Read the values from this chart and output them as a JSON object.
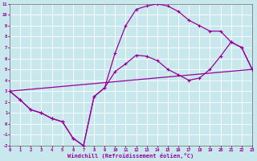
{
  "xlabel": "Windchill (Refroidissement éolien,°C)",
  "bg_color": "#c8e8ee",
  "grid_color": "#ffffff",
  "line_color": "#990099",
  "xlim": [
    0,
    23
  ],
  "ylim": [
    -2,
    11
  ],
  "xticks": [
    0,
    1,
    2,
    3,
    4,
    5,
    6,
    7,
    8,
    9,
    10,
    11,
    12,
    13,
    14,
    15,
    16,
    17,
    18,
    19,
    20,
    21,
    22,
    23
  ],
  "yticks": [
    -2,
    -1,
    0,
    1,
    2,
    3,
    4,
    5,
    6,
    7,
    8,
    9,
    10,
    11
  ],
  "curve1_x": [
    0,
    1,
    2,
    3,
    4,
    5,
    6,
    7,
    8,
    9,
    10,
    11,
    12,
    13,
    14,
    15,
    16,
    17,
    18,
    19,
    20,
    21,
    22,
    23
  ],
  "curve1_y": [
    3.0,
    2.2,
    1.3,
    1.0,
    0.5,
    0.2,
    -1.3,
    -2.0,
    2.5,
    3.3,
    6.5,
    9.0,
    10.5,
    10.8,
    11.0,
    10.8,
    10.3,
    9.5,
    9.0,
    8.5,
    8.5,
    7.5,
    7.0,
    5.0
  ],
  "curve2_x": [
    0,
    1,
    2,
    3,
    4,
    5,
    6,
    7,
    8,
    9,
    10,
    11,
    12,
    13,
    14,
    15,
    16,
    17,
    18,
    19,
    20,
    21,
    22,
    23
  ],
  "curve2_y": [
    3.0,
    2.2,
    1.3,
    1.0,
    0.5,
    0.2,
    -1.3,
    -2.0,
    2.5,
    3.3,
    4.8,
    5.5,
    6.3,
    6.2,
    5.8,
    5.0,
    4.5,
    4.0,
    4.2,
    5.0,
    6.2,
    7.5,
    7.0,
    5.0
  ],
  "curve3_x": [
    0,
    23
  ],
  "curve3_y": [
    3.0,
    5.0
  ],
  "linewidth": 0.9,
  "markersize": 3.5
}
